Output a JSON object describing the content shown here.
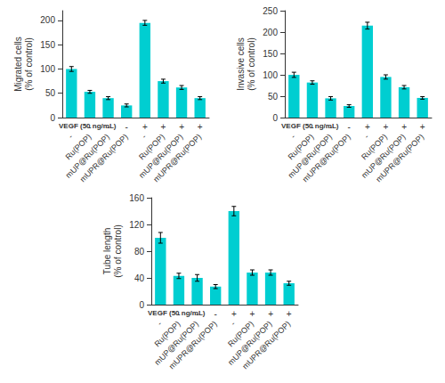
{
  "chart_data": [
    {
      "type": "bar",
      "categories": [
        "-",
        "Ru(POP)",
        "mUP@Ru(POP)",
        "mUPR@Ru(POP)",
        "-",
        "Ru(POP)",
        "mUP@Ru(POP)",
        "mUPR@Ru(POP)"
      ],
      "values": [
        100,
        53,
        40,
        25,
        195,
        75,
        62,
        40
      ],
      "errors": [
        5,
        3,
        3,
        3,
        5,
        4,
        4,
        3
      ],
      "color": "#00CED1",
      "ylabel": "Migrated cells\n(% of control)",
      "ylim": [
        0,
        220
      ],
      "yticks": [
        0,
        50,
        100,
        150,
        200
      ],
      "grid": false,
      "annotations": [
        {
          "text": "VEGF (50 ng/mL)",
          "labels": [
            "-",
            "-",
            "-",
            "-",
            "+",
            "+",
            "+",
            "+"
          ]
        }
      ]
    },
    {
      "type": "bar",
      "categories": [
        "-",
        "Ru(POP)",
        "mUP@Ru(POP)",
        "mUPR@Ru(POP)",
        "-",
        "Ru(POP)",
        "mUP@Ru(POP)",
        "mUPR@Ru(POP)"
      ],
      "values": [
        100,
        82,
        45,
        27,
        215,
        95,
        71,
        46
      ],
      "errors": [
        6,
        4,
        4,
        3,
        8,
        5,
        4,
        3
      ],
      "color": "#00CED1",
      "ylabel": "Invasive cells\n(% of control)",
      "ylim": [
        0,
        250
      ],
      "yticks": [
        0,
        50,
        100,
        150,
        200,
        250
      ],
      "grid": false,
      "annotations": [
        {
          "text": "VEGF (50 ng/mL)",
          "labels": [
            "-",
            "-",
            "-",
            "-",
            "+",
            "+",
            "+",
            "+"
          ]
        }
      ]
    },
    {
      "type": "bar",
      "categories": [
        "-",
        "Ru(POP)",
        "mUP@Ru(POP)",
        "mUPR@Ru(POP)",
        "-",
        "Ru(POP)",
        "mUP@Ru(POP)",
        "mUPR@Ru(POP)"
      ],
      "values": [
        100,
        43,
        40,
        27,
        140,
        48,
        48,
        32
      ],
      "errors": [
        8,
        4,
        5,
        3,
        7,
        4,
        4,
        3
      ],
      "color": "#00CED1",
      "ylabel": "Tube length\n(% of control)",
      "ylim": [
        0,
        160
      ],
      "yticks": [
        0,
        40,
        80,
        120,
        160
      ],
      "grid": false,
      "annotations": [
        {
          "text": "VEGF (50 ng/mL)",
          "labels": [
            "-",
            "-",
            "-",
            "-",
            "+",
            "+",
            "+",
            "+"
          ]
        }
      ]
    }
  ]
}
